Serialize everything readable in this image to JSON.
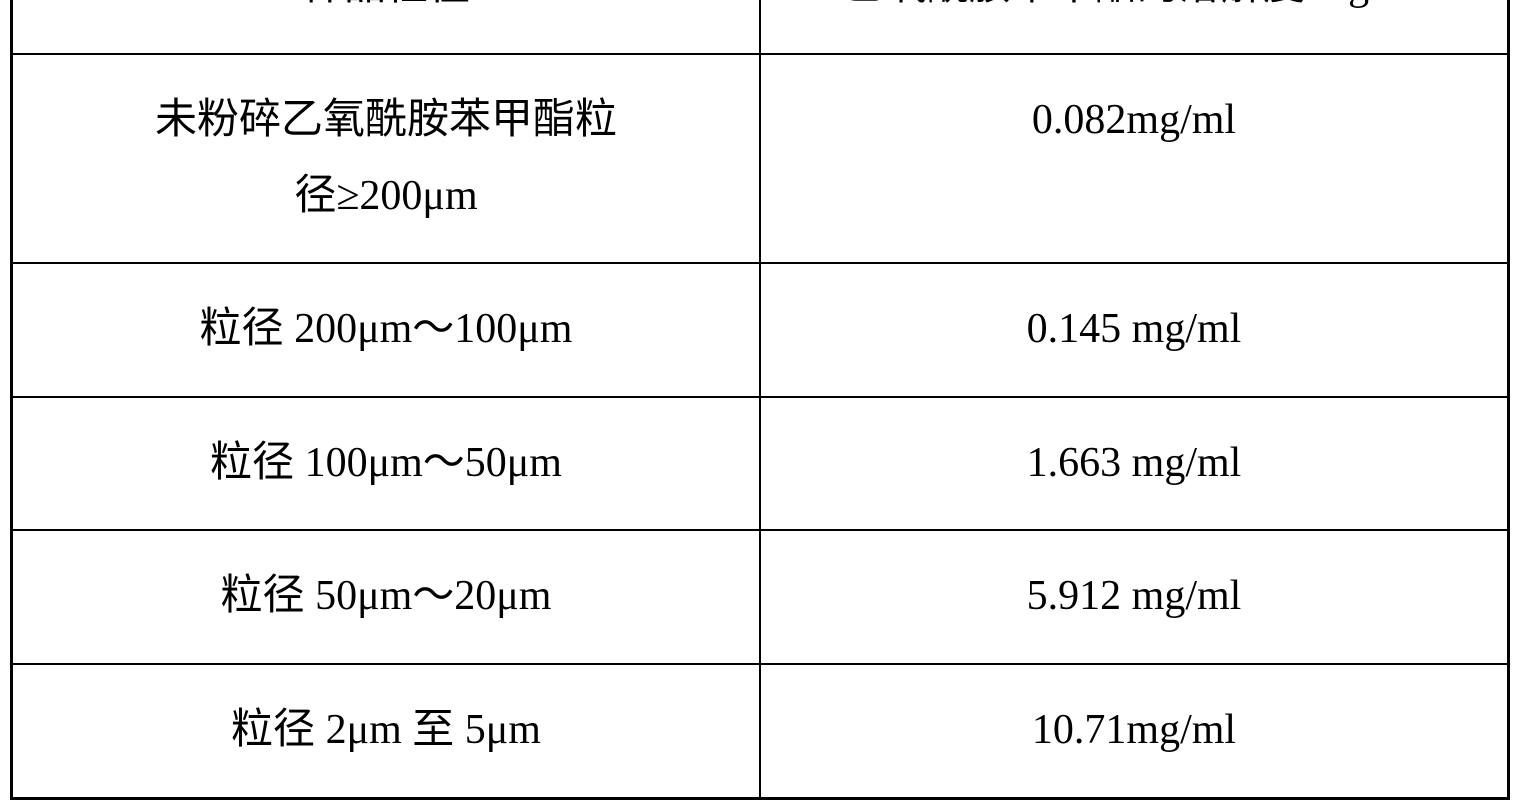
{
  "table": {
    "headers": {
      "col1": "样品粒径",
      "col2_cn": "乙氧酰胺苯甲酯的溶解度",
      "col2_latin": " mg/ml"
    },
    "rows": [
      {
        "particle_cn1": "未粉碎乙氧酰胺苯甲酯粒",
        "particle_cn2": "径",
        "particle_latin2": "≥200μm",
        "solubility": "0.082mg/ml"
      },
      {
        "particle_cn": "粒径 ",
        "particle_latin": "200μm～100μm",
        "solubility": "0.145 mg/ml"
      },
      {
        "particle_cn": "粒径 ",
        "particle_latin": "100μm～50μm",
        "solubility": "1.663 mg/ml"
      },
      {
        "particle_cn": "粒径 ",
        "particle_latin": "50μm～20μm",
        "solubility": "5.912 mg/ml"
      },
      {
        "particle_cn1": "粒径 ",
        "particle_latin1": "2μm ",
        "particle_cn2": "至 ",
        "particle_latin2": "5μm",
        "solubility": "10.71mg/ml"
      }
    ],
    "styling": {
      "border_color": "#000000",
      "outer_border_width": 3,
      "inner_border_width": 2,
      "background_color": "#ffffff",
      "text_color": "#000000",
      "font_size": 42,
      "cn_font": "KaiTi",
      "latin_font": "Times New Roman",
      "cell_padding": 28,
      "line_height": 1.8,
      "col_widths": [
        "50%",
        "50%"
      ]
    }
  }
}
